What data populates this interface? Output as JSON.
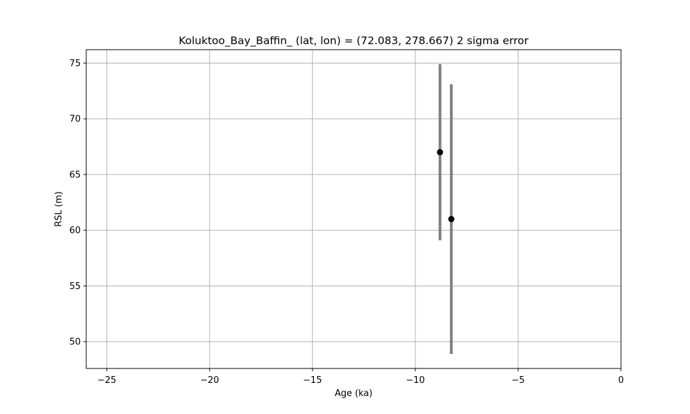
{
  "chart_data": {
    "type": "scatter",
    "title": "Koluktoo_Bay_Baffin_ (lat, lon) = (72.083, 278.667)  2 sigma error",
    "xlabel": "Age (ka)",
    "ylabel": "RSL (m)",
    "xlim": [
      -26,
      0
    ],
    "ylim": [
      47.6,
      76.2
    ],
    "xticks": [
      -25,
      -20,
      -15,
      -10,
      -5,
      0
    ],
    "xtick_labels": [
      "−25",
      "−20",
      "−15",
      "−10",
      "−5",
      "0"
    ],
    "yticks": [
      50,
      55,
      60,
      65,
      70,
      75
    ],
    "yticks_labels": [
      "50",
      "55",
      "60",
      "65",
      "70",
      "75"
    ],
    "grid": true,
    "points": [
      {
        "x": -8.8,
        "y": 67.0,
        "y_low": 59.1,
        "y_high": 74.9
      },
      {
        "x": -8.25,
        "y": 61.0,
        "y_low": 48.9,
        "y_high": 73.1
      }
    ],
    "marker_color": "#000000",
    "errorbar_color": "#808080",
    "grid_color": "#b0b0b0"
  }
}
